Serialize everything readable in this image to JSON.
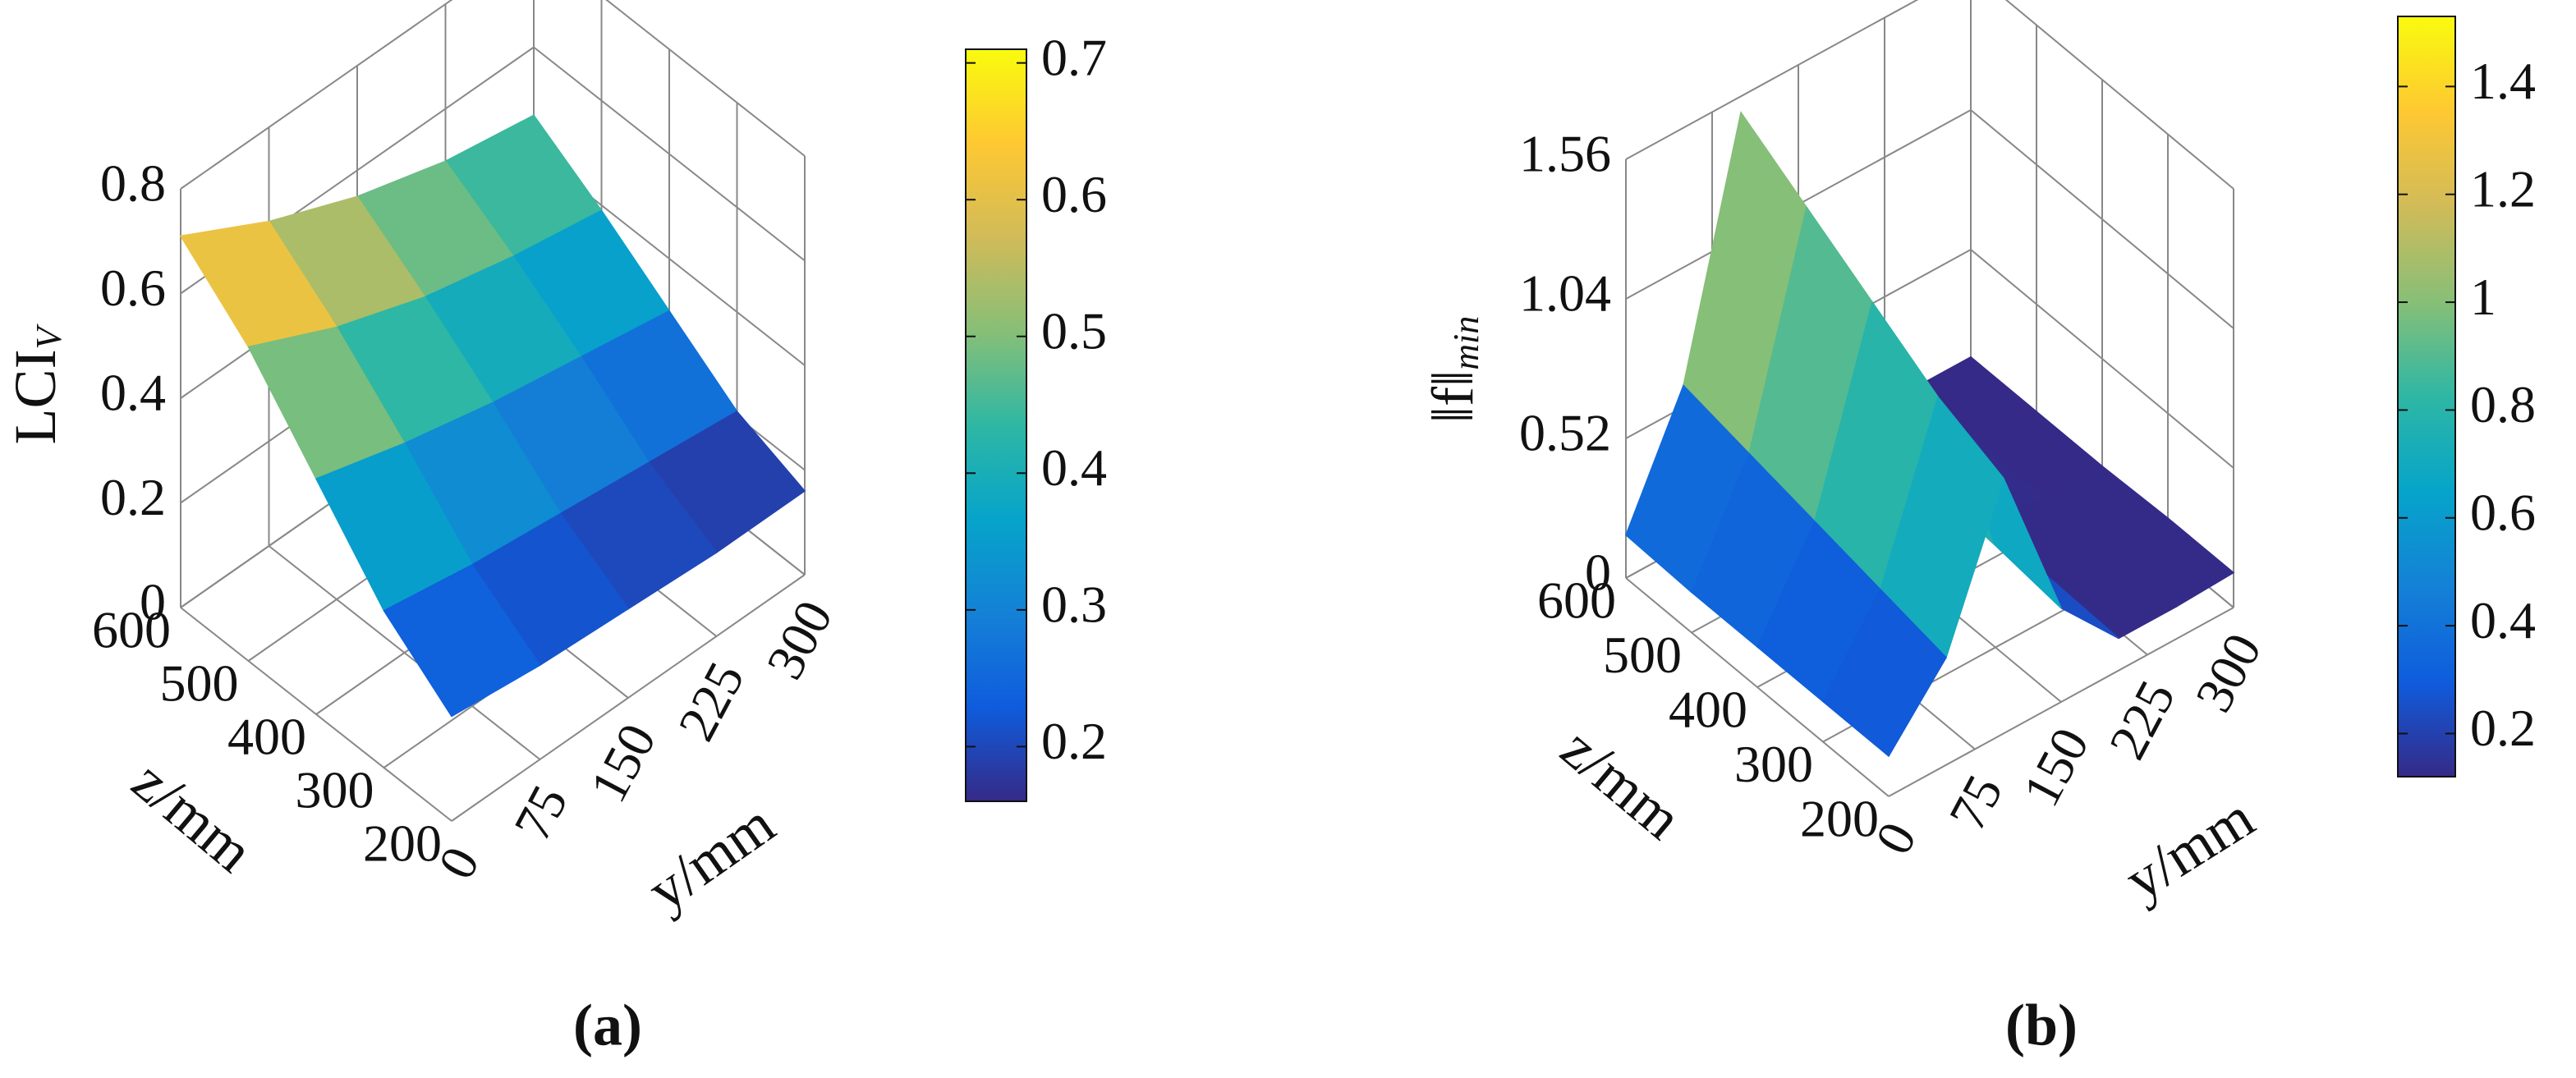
{
  "chart_data": [
    {
      "type": "surface",
      "caption": "(a)",
      "zlabel": "LCI",
      "zlabel_sub": "V",
      "xlabel": "y/mm",
      "ylabel": "z/mm",
      "x": [
        0,
        75,
        150,
        225,
        300
      ],
      "y": [
        200,
        300,
        400,
        500,
        600
      ],
      "values": [
        [
          0.2,
          0.18,
          0.17,
          0.16,
          0.16
        ],
        [
          0.3,
          0.27,
          0.25,
          0.23,
          0.21
        ],
        [
          0.45,
          0.4,
          0.36,
          0.33,
          0.3
        ],
        [
          0.6,
          0.52,
          0.46,
          0.42,
          0.39
        ],
        [
          0.71,
          0.62,
          0.55,
          0.5,
          0.47
        ]
      ],
      "xlim": [
        0,
        300
      ],
      "ylim": [
        200,
        600
      ],
      "zlim": [
        0,
        0.8
      ],
      "xticks": [
        0,
        75,
        150,
        225,
        300
      ],
      "yticks": [
        200,
        300,
        400,
        500,
        600
      ],
      "zticks": [
        0,
        0.2,
        0.4,
        0.6,
        0.8
      ],
      "clim": [
        0.16,
        0.71
      ],
      "cticks": [
        0.2,
        0.3,
        0.4,
        0.5,
        0.6,
        0.7
      ],
      "colormap": "parula"
    },
    {
      "type": "surface",
      "caption": "(b)",
      "zlabel": "‖f‖",
      "zlabel_sub": "min",
      "xlabel": "y/mm",
      "ylabel": "z/mm",
      "x": [
        0,
        50,
        100,
        150,
        200,
        250,
        300
      ],
      "y": [
        200,
        300,
        400,
        500,
        600
      ],
      "values": [
        [
          0.15,
          0.4,
          0.95,
          0.35,
          0.12,
          0.12,
          0.13
        ],
        [
          0.15,
          0.45,
          1.05,
          0.38,
          0.13,
          0.12,
          0.13
        ],
        [
          0.15,
          0.5,
          1.2,
          0.4,
          0.13,
          0.12,
          0.12
        ],
        [
          0.15,
          0.55,
          1.35,
          0.42,
          0.14,
          0.12,
          0.12
        ],
        [
          0.16,
          0.6,
          1.5,
          0.45,
          0.15,
          0.12,
          0.12
        ]
      ],
      "xlim": [
        0,
        300
      ],
      "ylim": [
        200,
        600
      ],
      "zlim": [
        0,
        1.56
      ],
      "xticks": [
        0,
        75,
        150,
        225,
        300
      ],
      "yticks": [
        200,
        300,
        400,
        500,
        600
      ],
      "zticks": [
        0,
        0.52,
        1.04,
        1.56
      ],
      "clim": [
        0.12,
        1.53
      ],
      "cticks": [
        0.2,
        0.4,
        0.6,
        0.8,
        1,
        1.2,
        1.4
      ],
      "colormap": "parula"
    }
  ]
}
